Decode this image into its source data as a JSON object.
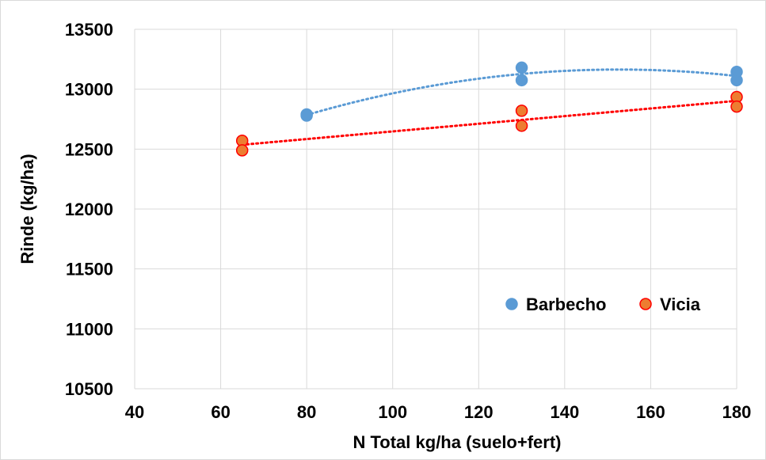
{
  "chart_data": {
    "type": "scatter",
    "xlabel": "N Total kg/ha (suelo+fert)",
    "ylabel": "Rinde (kg/ha)",
    "xlim": [
      40,
      180
    ],
    "ylim": [
      10500,
      13500
    ],
    "x_ticks": [
      "40",
      "60",
      "80",
      "100",
      "120",
      "140",
      "160",
      "180"
    ],
    "y_ticks": [
      "10500",
      "11000",
      "11500",
      "12000",
      "12500",
      "13000",
      "13500"
    ],
    "grid": true,
    "legend_position": "inside-lower-right",
    "series": [
      {
        "name": "Barbecho",
        "color": "#5B9BD5",
        "edge_color": "#5B9BD5",
        "trendline": "polynomial",
        "trendline_style": "dotted",
        "points": [
          [
            80,
            12790
          ],
          [
            80,
            12780
          ],
          [
            130,
            13180
          ],
          [
            130,
            13075
          ],
          [
            180,
            13145
          ],
          [
            180,
            13075
          ]
        ]
      },
      {
        "name": "Vicia",
        "color": "#ED7D31",
        "edge_color": "#FF0000",
        "trendline": "linear",
        "trendline_style": "dotted",
        "points": [
          [
            65,
            12570
          ],
          [
            65,
            12490
          ],
          [
            130,
            12820
          ],
          [
            130,
            12695
          ],
          [
            180,
            12935
          ],
          [
            180,
            12855
          ]
        ]
      }
    ]
  }
}
